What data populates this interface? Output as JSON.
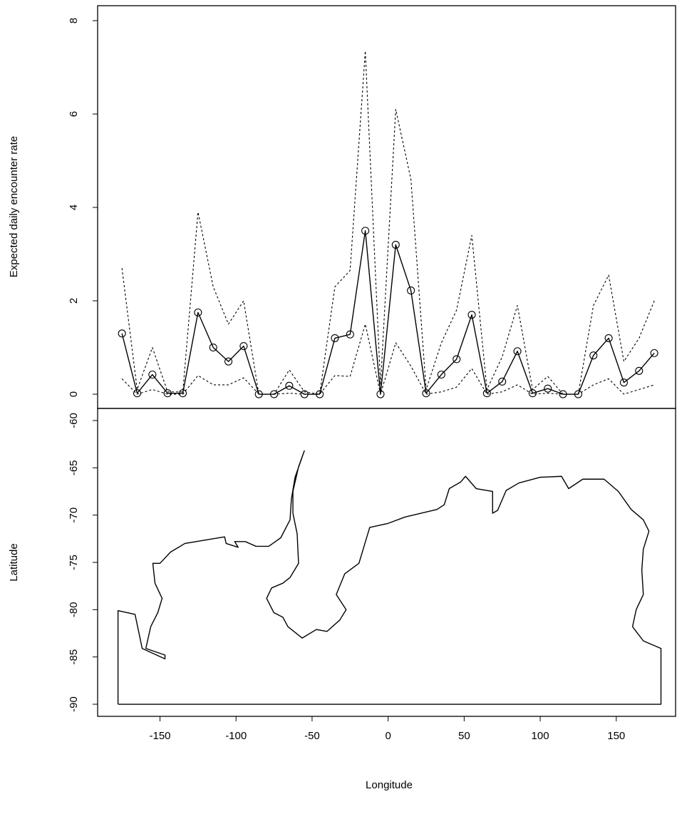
{
  "chart_data": [
    {
      "type": "line",
      "ylabel": "Expected daily encounter rate",
      "xlim": [
        -191,
        189
      ],
      "ylim": [
        -0.305,
        8.32
      ],
      "yticks": [
        0,
        2,
        4,
        6,
        8
      ],
      "x": [
        -175,
        -165,
        -155,
        -145,
        -135,
        -125,
        -115,
        -105,
        -95,
        -85,
        -75,
        -65,
        -55,
        -45,
        -35,
        -25,
        -15,
        -5,
        5,
        15,
        25,
        35,
        45,
        55,
        65,
        75,
        85,
        95,
        105,
        115,
        125,
        135,
        145,
        155,
        165,
        175
      ],
      "series": [
        {
          "color": "#000000",
          "linestyle": "solid",
          "markers": true,
          "values": [
            1.3,
            0.02,
            0.42,
            0.02,
            0.02,
            1.75,
            1.0,
            0.7,
            1.03,
            0,
            0,
            0.18,
            0,
            0,
            1.2,
            1.28,
            3.5,
            0,
            3.2,
            2.22,
            0.02,
            0.42,
            0.75,
            1.7,
            0.02,
            0.27,
            0.92,
            0.02,
            0.12,
            0,
            0,
            0.83,
            1.2,
            0.25,
            0.5,
            0.88
          ]
        },
        {
          "color": "#000000",
          "linestyle": "dashed",
          "markers": false,
          "values": [
            2.7,
            0.1,
            1.0,
            0.05,
            0.05,
            3.9,
            2.3,
            1.5,
            2.0,
            0,
            0,
            0.52,
            0.05,
            0,
            2.3,
            2.65,
            7.35,
            0.2,
            6.1,
            4.6,
            0.1,
            1.1,
            1.8,
            3.4,
            0.1,
            0.8,
            1.9,
            0.1,
            0.38,
            0,
            0,
            1.9,
            2.55,
            0.7,
            1.2,
            2.0
          ]
        },
        {
          "color": "#000000",
          "linestyle": "dashed",
          "markers": false,
          "values": [
            0.33,
            0,
            0.1,
            0,
            0,
            0.4,
            0.2,
            0.2,
            0.35,
            0,
            0,
            0.02,
            0,
            0,
            0.4,
            0.38,
            1.5,
            0,
            1.1,
            0.6,
            0,
            0.05,
            0.15,
            0.55,
            0,
            0.05,
            0.2,
            0,
            0.02,
            0,
            0,
            0.2,
            0.33,
            0,
            0.1,
            0.2
          ]
        }
      ]
    },
    {
      "type": "line",
      "xlabel": "Longitude",
      "ylabel": "Latitude",
      "xlim": [
        -191,
        189
      ],
      "ylim": [
        -91.28,
        -58.72
      ],
      "xticks": [
        -150,
        -100,
        -50,
        0,
        50,
        100,
        150
      ],
      "yticks": [
        -90,
        -85,
        -80,
        -75,
        -70,
        -65,
        -60
      ],
      "x": [
        -177.6,
        -177.6,
        -166.4,
        -161.7,
        -146.7,
        -146.7,
        -159.3,
        -156.1,
        -151.4,
        -148.6,
        -153.3,
        -154.7,
        -150,
        -143,
        -133.6,
        -115,
        -107.5,
        -106.5,
        -98.6,
        -100.9,
        -93.9,
        -86.9,
        -78.5,
        -70.6,
        -64.5,
        -63.6,
        -61.2,
        -55.1,
        -58.9,
        -62.6,
        -62.6,
        -59.8,
        -58.9,
        -64.5,
        -69.2,
        -76.6,
        -79.9,
        -75.2,
        -69.2,
        -65.9,
        -56.5,
        -47.2,
        -40.2,
        -31.8,
        -27.6,
        -34.1,
        -28.5,
        -19.2,
        -12.1,
        -0.5,
        11.2,
        32.2,
        36.9,
        40.2,
        47.7,
        50.9,
        57.9,
        68.7,
        68.7,
        72.0,
        77.6,
        86.0,
        100,
        114,
        118.7,
        128,
        142,
        151.4,
        159.8,
        167.8,
        171.5,
        167.8,
        166.8,
        167.8,
        163.1,
        160.7,
        167.8,
        179.4,
        179.4,
        -177.6
      ],
      "series": [
        {
          "color": "#000000",
          "linestyle": "solid",
          "markers": false,
          "values": [
            -90.0,
            -80.1,
            -80.5,
            -84.1,
            -85.2,
            -84.8,
            -84.1,
            -81.8,
            -80.3,
            -78.8,
            -77.2,
            -75.1,
            -75.1,
            -73.9,
            -73.0,
            -72.5,
            -72.3,
            -73.0,
            -73.4,
            -72.8,
            -72.8,
            -73.3,
            -73.3,
            -72.4,
            -70.5,
            -68.3,
            -66.0,
            -63.2,
            -64.9,
            -67.5,
            -69.8,
            -72.0,
            -75.1,
            -76.6,
            -77.2,
            -77.7,
            -78.8,
            -80.3,
            -80.8,
            -81.8,
            -83.0,
            -82.1,
            -82.3,
            -81.1,
            -80.0,
            -78.4,
            -76.2,
            -75.1,
            -71.3,
            -70.9,
            -70.2,
            -69.4,
            -68.9,
            -67.2,
            -66.5,
            -65.9,
            -67.2,
            -67.5,
            -69.8,
            -69.5,
            -67.4,
            -66.6,
            -66.0,
            -65.9,
            -67.2,
            -66.2,
            -66.2,
            -67.5,
            -69.4,
            -70.5,
            -71.7,
            -73.6,
            -75.8,
            -78.4,
            -80.0,
            -81.8,
            -83.3,
            -84.1,
            -90.0,
            -90.0
          ]
        }
      ]
    }
  ]
}
